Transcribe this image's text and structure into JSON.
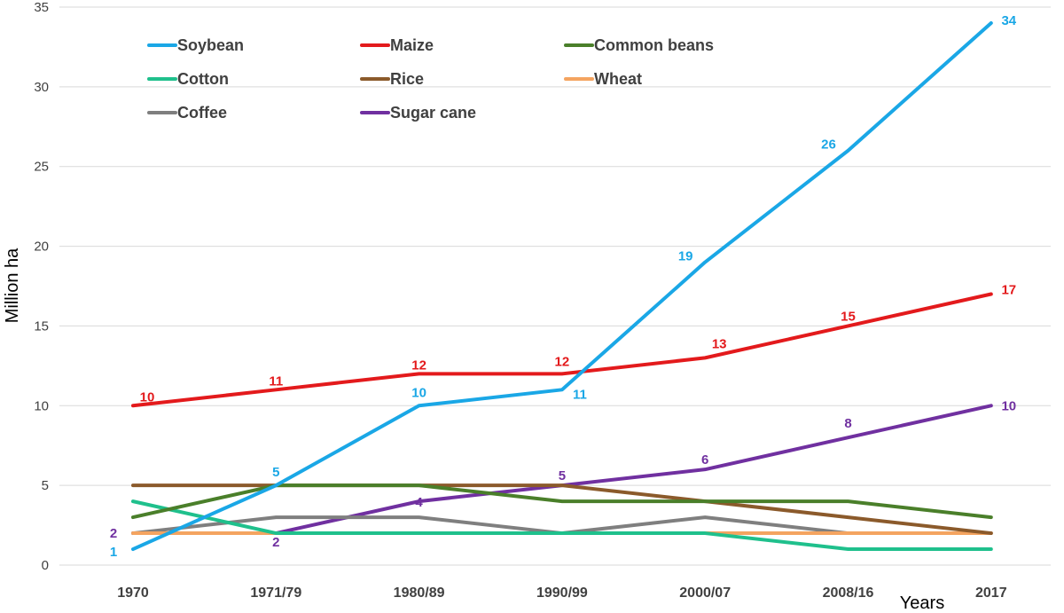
{
  "chart_data": {
    "type": "line",
    "categories": [
      "1970",
      "1971/79",
      "1980/89",
      "1990/99",
      "2000/07",
      "2008/16",
      "2017"
    ],
    "xlabel": "Years",
    "ylabel": "Million ha",
    "ylim": [
      0,
      35
    ],
    "yticks": [
      0,
      5,
      10,
      15,
      20,
      25,
      30,
      35
    ],
    "grid": true,
    "legend_position": "top-left",
    "series": [
      {
        "name": "Soybean",
        "color": "#1aa7e6",
        "values": [
          1,
          5,
          10,
          11,
          19,
          26,
          34
        ],
        "labels": [
          {
            "i": 0,
            "text": "1"
          },
          {
            "i": 1,
            "text": "5"
          },
          {
            "i": 2,
            "text": "10"
          },
          {
            "i": 3,
            "text": "11"
          },
          {
            "i": 4,
            "text": "19"
          },
          {
            "i": 5,
            "text": "26"
          },
          {
            "i": 6,
            "text": "34"
          }
        ]
      },
      {
        "name": "Maize",
        "color": "#e31a1c",
        "values": [
          10,
          11,
          12,
          12,
          13,
          15,
          17
        ],
        "labels": [
          {
            "i": 0,
            "text": "10"
          },
          {
            "i": 1,
            "text": "11"
          },
          {
            "i": 2,
            "text": "12"
          },
          {
            "i": 3,
            "text": "12"
          },
          {
            "i": 4,
            "text": "13"
          },
          {
            "i": 5,
            "text": "15"
          },
          {
            "i": 6,
            "text": "17"
          }
        ]
      },
      {
        "name": "Common beans",
        "color": "#4a7f2a",
        "values": [
          3,
          5,
          5,
          4,
          4,
          4,
          3
        ],
        "labels": []
      },
      {
        "name": "Cotton",
        "color": "#1fc08c",
        "values": [
          4,
          2,
          2,
          2,
          2,
          1,
          1
        ],
        "labels": []
      },
      {
        "name": "Rice",
        "color": "#8b5a2b",
        "values": [
          5,
          5,
          5,
          5,
          4,
          3,
          2
        ],
        "labels": []
      },
      {
        "name": "Wheat",
        "color": "#f4a460",
        "values": [
          2,
          2,
          2,
          2,
          2,
          2,
          2
        ],
        "labels": []
      },
      {
        "name": "Coffee",
        "color": "#7f7f7f",
        "values": [
          2,
          3,
          3,
          2,
          3,
          2,
          2
        ],
        "labels": []
      },
      {
        "name": "Sugar cane",
        "color": "#7030a0",
        "values": [
          2,
          2,
          4,
          5,
          6,
          8,
          10
        ],
        "labels": [
          {
            "i": 0,
            "text": "2"
          },
          {
            "i": 1,
            "text": "2"
          },
          {
            "i": 2,
            "text": "4"
          },
          {
            "i": 3,
            "text": "5"
          },
          {
            "i": 4,
            "text": "6"
          },
          {
            "i": 5,
            "text": "8"
          },
          {
            "i": 6,
            "text": "10"
          }
        ]
      }
    ]
  }
}
